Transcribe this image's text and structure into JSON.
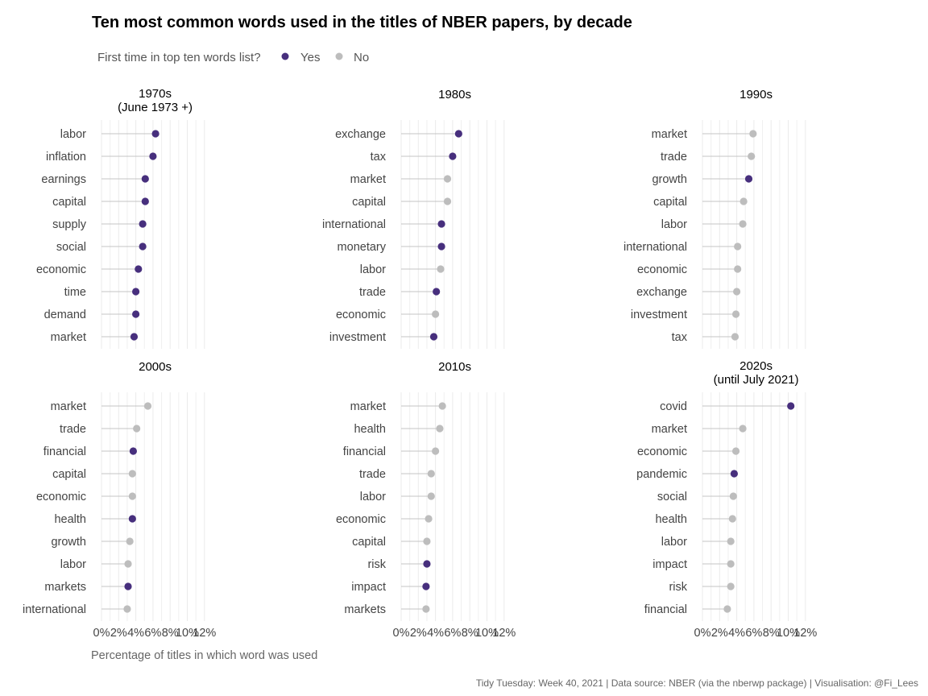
{
  "chart_data": {
    "type": "lollipop",
    "title": "Ten most common words used in the titles of NBER papers, by decade",
    "legend": {
      "title": "First time in top ten words list?",
      "placement": "top-left",
      "entries": [
        {
          "label": "Yes",
          "color": "#472f7d"
        },
        {
          "label": "No",
          "color": "#bdbdbd"
        }
      ]
    },
    "xlabel": "Percentage of titles in which word was used",
    "xlim": [
      0,
      12.5
    ],
    "xticks": [
      "0%",
      "2%",
      "4%",
      "6%",
      "8%",
      "10%",
      "12%"
    ],
    "caption": "Tidy Tuesday: Week 40, 2021 | Data source: NBER (via the nberwp package) | Visualisation: @Fi_Lees",
    "grid": "vertical",
    "facets": [
      {
        "title": "1970s",
        "subtitle": "(June 1973 +)",
        "items": [
          {
            "word": "labor",
            "value": 6.3,
            "first": true
          },
          {
            "word": "inflation",
            "value": 6.0,
            "first": true
          },
          {
            "word": "earnings",
            "value": 5.1,
            "first": true
          },
          {
            "word": "capital",
            "value": 5.1,
            "first": true
          },
          {
            "word": "supply",
            "value": 4.8,
            "first": true
          },
          {
            "word": "social",
            "value": 4.8,
            "first": true
          },
          {
            "word": "economic",
            "value": 4.3,
            "first": true
          },
          {
            "word": "time",
            "value": 4.0,
            "first": true
          },
          {
            "word": "demand",
            "value": 4.0,
            "first": true
          },
          {
            "word": "market",
            "value": 3.8,
            "first": true
          }
        ]
      },
      {
        "title": "1980s",
        "subtitle": "",
        "items": [
          {
            "word": "exchange",
            "value": 6.7,
            "first": true
          },
          {
            "word": "tax",
            "value": 6.0,
            "first": true
          },
          {
            "word": "market",
            "value": 5.4,
            "first": false
          },
          {
            "word": "capital",
            "value": 5.4,
            "first": false
          },
          {
            "word": "international",
            "value": 4.7,
            "first": true
          },
          {
            "word": "monetary",
            "value": 4.7,
            "first": true
          },
          {
            "word": "labor",
            "value": 4.6,
            "first": false
          },
          {
            "word": "trade",
            "value": 4.1,
            "first": true
          },
          {
            "word": "economic",
            "value": 4.0,
            "first": false
          },
          {
            "word": "investment",
            "value": 3.8,
            "first": true
          }
        ]
      },
      {
        "title": "1990s",
        "subtitle": "",
        "items": [
          {
            "word": "market",
            "value": 5.9,
            "first": false
          },
          {
            "word": "trade",
            "value": 5.7,
            "first": false
          },
          {
            "word": "growth",
            "value": 5.4,
            "first": true
          },
          {
            "word": "capital",
            "value": 4.8,
            "first": false
          },
          {
            "word": "labor",
            "value": 4.7,
            "first": false
          },
          {
            "word": "international",
            "value": 4.1,
            "first": false
          },
          {
            "word": "economic",
            "value": 4.1,
            "first": false
          },
          {
            "word": "exchange",
            "value": 4.0,
            "first": false
          },
          {
            "word": "investment",
            "value": 3.9,
            "first": false
          },
          {
            "word": "tax",
            "value": 3.8,
            "first": false
          }
        ]
      },
      {
        "title": "2000s",
        "subtitle": "",
        "items": [
          {
            "word": "market",
            "value": 5.4,
            "first": false
          },
          {
            "word": "trade",
            "value": 4.1,
            "first": false
          },
          {
            "word": "financial",
            "value": 3.7,
            "first": true
          },
          {
            "word": "capital",
            "value": 3.6,
            "first": false
          },
          {
            "word": "economic",
            "value": 3.6,
            "first": false
          },
          {
            "word": "health",
            "value": 3.6,
            "first": true
          },
          {
            "word": "growth",
            "value": 3.3,
            "first": false
          },
          {
            "word": "labor",
            "value": 3.1,
            "first": false
          },
          {
            "word": "markets",
            "value": 3.1,
            "first": true
          },
          {
            "word": "international",
            "value": 3.0,
            "first": false
          }
        ]
      },
      {
        "title": "2010s",
        "subtitle": "",
        "items": [
          {
            "word": "market",
            "value": 4.8,
            "first": false
          },
          {
            "word": "health",
            "value": 4.5,
            "first": false
          },
          {
            "word": "financial",
            "value": 4.0,
            "first": false
          },
          {
            "word": "trade",
            "value": 3.5,
            "first": false
          },
          {
            "word": "labor",
            "value": 3.5,
            "first": false
          },
          {
            "word": "economic",
            "value": 3.2,
            "first": false
          },
          {
            "word": "capital",
            "value": 3.0,
            "first": false
          },
          {
            "word": "risk",
            "value": 3.0,
            "first": true
          },
          {
            "word": "impact",
            "value": 2.9,
            "first": true
          },
          {
            "word": "markets",
            "value": 2.9,
            "first": false
          }
        ]
      },
      {
        "title": "2020s",
        "subtitle": "(until July 2021)",
        "items": [
          {
            "word": "covid",
            "value": 10.3,
            "first": true
          },
          {
            "word": "market",
            "value": 4.7,
            "first": false
          },
          {
            "word": "economic",
            "value": 3.9,
            "first": false
          },
          {
            "word": "pandemic",
            "value": 3.7,
            "first": true
          },
          {
            "word": "social",
            "value": 3.6,
            "first": false
          },
          {
            "word": "health",
            "value": 3.5,
            "first": false
          },
          {
            "word": "labor",
            "value": 3.3,
            "first": false
          },
          {
            "word": "impact",
            "value": 3.3,
            "first": false
          },
          {
            "word": "risk",
            "value": 3.3,
            "first": false
          },
          {
            "word": "financial",
            "value": 2.9,
            "first": false
          }
        ]
      }
    ]
  }
}
